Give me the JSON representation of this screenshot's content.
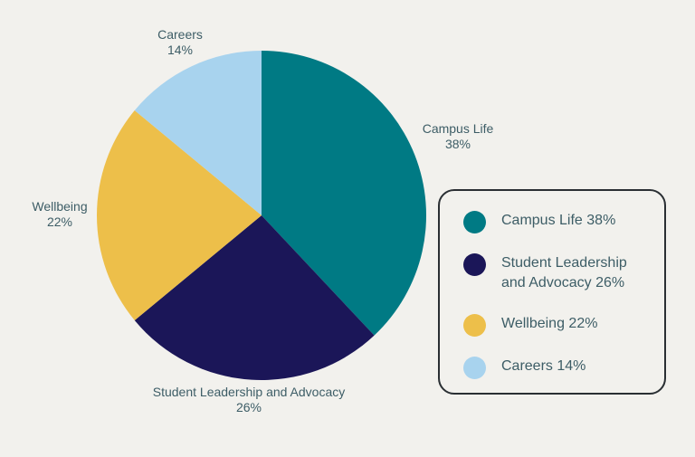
{
  "chart_data": {
    "type": "pie",
    "title": "",
    "slices": [
      {
        "name": "Campus Life",
        "value": 38,
        "label": "Campus Life",
        "pct": "38%",
        "legend": "Campus Life 38%",
        "legend_lines": [
          "Campus Life 38%"
        ],
        "color": "#007a84"
      },
      {
        "name": "Student Leadership and Advocacy",
        "value": 26,
        "label": "Student Leadership and Advocacy",
        "pct": "26%",
        "legend": "Student Leadership and Advocacy 26%",
        "legend_lines": [
          "Student Leadership",
          "and Advocacy 26%"
        ],
        "color": "#1b1658"
      },
      {
        "name": "Wellbeing",
        "value": 22,
        "label": "Wellbeing",
        "pct": "22%",
        "legend": "Wellbeing 22%",
        "legend_lines": [
          "Wellbeing 22%"
        ],
        "color": "#edbf4a"
      },
      {
        "name": "Careers",
        "value": 14,
        "label": "Careers",
        "pct": "14%",
        "legend": "Careers 14%",
        "legend_lines": [
          "Careers 14%"
        ],
        "color": "#a8d3ee"
      }
    ],
    "start_angle": "top",
    "direction": "clockwise",
    "legend_position": "right"
  }
}
